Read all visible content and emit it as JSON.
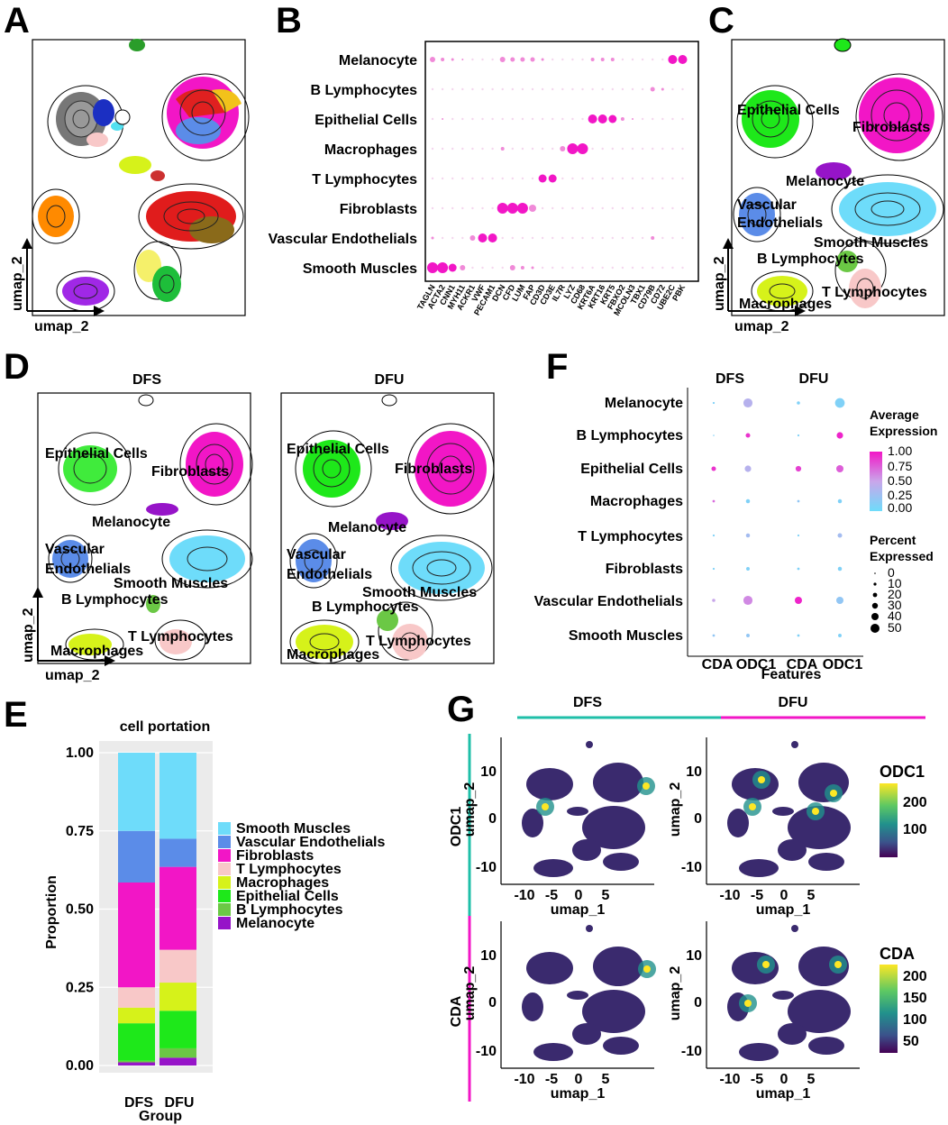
{
  "panel_letters": [
    "A",
    "B",
    "C",
    "D",
    "E",
    "F",
    "G"
  ],
  "axis_labels": {
    "umap2": "umap_2",
    "umap1": "umap_1"
  },
  "cell_types": [
    "Melanocyte",
    "B Lymphocytes",
    "Epithelial Cells",
    "Macrophages",
    "T Lymphocytes",
    "Fibroblasts",
    "Vascular Endothelials",
    "Smooth Muscles"
  ],
  "colors": {
    "Smooth Muscles": "#6EDCFA",
    "Vascular Endothelials": "#5B8CE8",
    "Fibroblasts": "#F216C6",
    "T Lymphocytes": "#F8C8C8",
    "Macrophages": "#D6F21A",
    "Epithelial Cells": "#1EE81A",
    "B Lymphocytes": "#6BC845",
    "Melanocyte": "#9614C8"
  },
  "panel_b": {
    "genes": [
      "TAGLN",
      "ACTA2",
      "CNN1",
      "MYH11",
      "ACKR1",
      "VWF",
      "PECAM1",
      "DCN",
      "CFD",
      "LUM",
      "FAP",
      "CD3D",
      "CD3E",
      "IL7R",
      "LYZ",
      "CD68",
      "KRT6A",
      "KRT16",
      "KRT5",
      "FBXO2",
      "MCOLN3",
      "TBX1",
      "CD79B",
      "CD72",
      "UBE2C",
      "PBK"
    ]
  },
  "panel_d": {
    "titles": [
      "DFS",
      "DFU"
    ]
  },
  "panel_e": {
    "title": "cell portation",
    "ylabel": "Proportion",
    "xlabel": "Group",
    "yticks": [
      "1.00",
      "0.75",
      "0.50",
      "0.25",
      "0.00"
    ],
    "legend_order": [
      "Smooth Muscles",
      "Vascular Endothelials",
      "Fibroblasts",
      "T Lymphocytes",
      "Macrophages",
      "Epithelial Cells",
      "B Lymphocytes",
      "Melanocyte"
    ]
  },
  "panel_f": {
    "groups": [
      "DFS",
      "DFU"
    ],
    "xticks": [
      "CDA",
      "ODC1",
      "CDA",
      "ODC1"
    ],
    "xlabel": "Features",
    "legend_expr_title": [
      "Average",
      "Expression"
    ],
    "legend_expr_ticks": [
      "1.00",
      "0.75",
      "0.50",
      "0.25",
      "0.00"
    ],
    "legend_pct_title": [
      "Percent",
      "Expressed"
    ],
    "legend_pct_ticks": [
      "0",
      "10",
      "20",
      "30",
      "40",
      "50"
    ]
  },
  "panel_g": {
    "cols": [
      "DFS",
      "DFU"
    ],
    "rows": [
      "ODC1",
      "CDA"
    ],
    "yticks": [
      "10",
      "0",
      "-10"
    ],
    "xticks": [
      "-10",
      "-5",
      "0",
      "5"
    ],
    "odc1_legend": {
      "title": "ODC1",
      "ticks": [
        "200",
        "100"
      ]
    },
    "cda_legend": {
      "title": "CDA",
      "ticks": [
        "200",
        "150",
        "100",
        "50"
      ]
    }
  },
  "chart_data": [
    {
      "type": "bar",
      "title": "cell portation",
      "xlabel": "Group",
      "ylabel": "Proportion",
      "ylim": [
        0,
        1
      ],
      "categories": [
        "DFS",
        "DFU"
      ],
      "series": [
        {
          "name": "Melanocyte",
          "values": [
            0.01,
            0.025
          ]
        },
        {
          "name": "B Lymphocytes",
          "values": [
            0.005,
            0.03
          ]
        },
        {
          "name": "Epithelial Cells",
          "values": [
            0.12,
            0.12
          ]
        },
        {
          "name": "Macrophages",
          "values": [
            0.05,
            0.09
          ]
        },
        {
          "name": "T Lymphocytes",
          "values": [
            0.065,
            0.105
          ]
        },
        {
          "name": "Fibroblasts",
          "values": [
            0.335,
            0.265
          ]
        },
        {
          "name": "Vascular Endothelials",
          "values": [
            0.165,
            0.09
          ]
        },
        {
          "name": "Smooth Muscles",
          "values": [
            0.25,
            0.275
          ]
        }
      ]
    },
    {
      "type": "scatter",
      "xlabel": "Features",
      "categories": [
        "CDA",
        "ODC1",
        "CDA",
        "ODC1"
      ],
      "groups": [
        "DFS",
        "DFS",
        "DFU",
        "DFU"
      ],
      "rows": [
        "Melanocyte",
        "B Lymphocytes",
        "Epithelial Cells",
        "Macrophages",
        "T Lymphocytes",
        "Fibroblasts",
        "Vascular Endothelials",
        "Smooth Muscles"
      ],
      "avg_expression": [
        [
          0.1,
          0.4,
          0.1,
          0.1
        ],
        [
          0.1,
          0.9,
          0.1,
          0.95
        ],
        [
          0.9,
          0.4,
          0.85,
          0.75
        ],
        [
          0.7,
          0.1,
          0.2,
          0.1
        ],
        [
          0.1,
          0.3,
          0.1,
          0.3
        ],
        [
          0.1,
          0.1,
          0.1,
          0.1
        ],
        [
          0.5,
          0.6,
          0.95,
          0.2
        ],
        [
          0.2,
          0.2,
          0.1,
          0.1
        ]
      ],
      "pct_expressed": [
        [
          2,
          40,
          5,
          45
        ],
        [
          1,
          10,
          2,
          20
        ],
        [
          10,
          20,
          15,
          25
        ],
        [
          3,
          8,
          3,
          8
        ],
        [
          2,
          8,
          2,
          10
        ],
        [
          2,
          6,
          3,
          8
        ],
        [
          5,
          40,
          25,
          25
        ],
        [
          3,
          6,
          3,
          6
        ]
      ]
    }
  ]
}
